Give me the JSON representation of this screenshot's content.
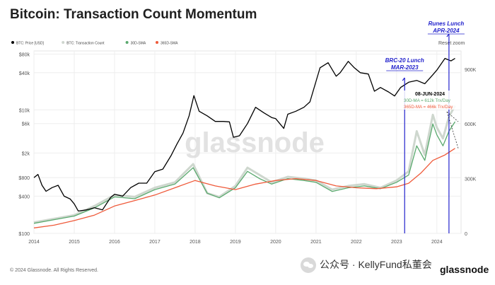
{
  "chart_data": {
    "type": "line",
    "title": "Bitcoin: Transaction Count Momentum",
    "legend_placement": "top-left",
    "grid": true,
    "y_left_scale": "log",
    "legend": [
      {
        "name": "BTC: Price [USD]",
        "color": "#000000"
      },
      {
        "name": "BTC: Transaction Count",
        "color": "#cfd6cf"
      },
      {
        "name": "30D-SMA",
        "color": "#5aa96e"
      },
      {
        "name": "365D-SMA",
        "color": "#ef5a3a"
      }
    ],
    "x_ticks": [
      "2014",
      "2015",
      "2016",
      "2017",
      "2018",
      "2019",
      "2020",
      "2021",
      "2022",
      "2023",
      "2024"
    ],
    "x_range": [
      2014.0,
      2024.6
    ],
    "y_left": {
      "ticks": [
        "$100",
        "$400",
        "$800",
        "$2k",
        "$6k",
        "$10k",
        "$40k",
        "$80k"
      ],
      "range": [
        100,
        90000
      ]
    },
    "y_right": {
      "ticks": [
        "0",
        "300K",
        "600K",
        "900K"
      ],
      "range": [
        0,
        1000000
      ]
    },
    "series": [
      {
        "name": "BTC: Price [USD]",
        "axis": "left",
        "x": [
          2014.0,
          2014.1,
          2014.2,
          2014.3,
          2014.45,
          2014.6,
          2014.75,
          2014.9,
          2015.0,
          2015.1,
          2015.3,
          2015.5,
          2015.7,
          2015.9,
          2016.0,
          2016.2,
          2016.4,
          2016.6,
          2016.8,
          2017.0,
          2017.2,
          2017.4,
          2017.55,
          2017.7,
          2017.85,
          2017.97,
          2018.1,
          2018.3,
          2018.5,
          2018.7,
          2018.85,
          2018.95,
          2019.1,
          2019.3,
          2019.5,
          2019.7,
          2019.9,
          2020.0,
          2020.2,
          2020.3,
          2020.5,
          2020.7,
          2020.85,
          2021.0,
          2021.1,
          2021.3,
          2021.5,
          2021.6,
          2021.8,
          2021.95,
          2022.1,
          2022.3,
          2022.45,
          2022.6,
          2022.8,
          2022.95,
          2023.1,
          2023.3,
          2023.5,
          2023.7,
          2023.9,
          2024.0,
          2024.2,
          2024.35,
          2024.45
        ],
        "y": [
          800,
          900,
          600,
          480,
          550,
          600,
          400,
          360,
          300,
          230,
          240,
          260,
          240,
          380,
          430,
          400,
          550,
          650,
          650,
          1000,
          1100,
          1800,
          2800,
          4200,
          8000,
          17000,
          9500,
          8000,
          6500,
          6500,
          6400,
          3600,
          3800,
          6000,
          11000,
          9000,
          7500,
          7200,
          5000,
          8500,
          9500,
          11000,
          13500,
          29000,
          48000,
          58000,
          35000,
          40000,
          61000,
          48000,
          40000,
          38000,
          20000,
          23000,
          19500,
          16800,
          23000,
          28000,
          30000,
          26500,
          37000,
          44000,
          68000,
          62000,
          68000
        ]
      },
      {
        "name": "BTC: Transaction Count",
        "axis": "right",
        "x": [
          2014.0,
          2014.5,
          2015.0,
          2015.5,
          2016.0,
          2016.5,
          2017.0,
          2017.5,
          2017.95,
          2018.3,
          2018.6,
          2019.0,
          2019.3,
          2019.6,
          2019.9,
          2020.3,
          2020.7,
          2021.0,
          2021.4,
          2021.8,
          2022.2,
          2022.6,
          2023.0,
          2023.3,
          2023.5,
          2023.7,
          2023.9,
          2024.0,
          2024.15,
          2024.3,
          2024.45
        ],
        "y": [
          60000,
          80000,
          100000,
          150000,
          210000,
          200000,
          250000,
          280000,
          380000,
          220000,
          200000,
          260000,
          360000,
          320000,
          280000,
          310000,
          300000,
          290000,
          240000,
          260000,
          270000,
          250000,
          290000,
          340000,
          560000,
          430000,
          650000,
          580000,
          520000,
          640000,
          700000
        ]
      },
      {
        "name": "30D-SMA",
        "axis": "right",
        "x": [
          2014.0,
          2014.5,
          2015.0,
          2015.5,
          2016.0,
          2016.5,
          2017.0,
          2017.5,
          2017.95,
          2018.3,
          2018.6,
          2019.0,
          2019.3,
          2019.6,
          2019.9,
          2020.3,
          2020.7,
          2021.0,
          2021.4,
          2021.8,
          2022.2,
          2022.6,
          2023.0,
          2023.3,
          2023.5,
          2023.7,
          2023.9,
          2024.0,
          2024.15,
          2024.3,
          2024.45
        ],
        "y": [
          55000,
          75000,
          95000,
          140000,
          200000,
          190000,
          240000,
          270000,
          360000,
          220000,
          195000,
          250000,
          340000,
          300000,
          270000,
          300000,
          290000,
          280000,
          230000,
          250000,
          260000,
          245000,
          280000,
          320000,
          480000,
          400000,
          600000,
          540000,
          480000,
          560000,
          612000
        ]
      },
      {
        "name": "365D-SMA",
        "axis": "right",
        "x": [
          2014.0,
          2014.5,
          2015.0,
          2015.5,
          2016.0,
          2016.5,
          2017.0,
          2017.5,
          2018.0,
          2018.5,
          2019.0,
          2019.5,
          2020.0,
          2020.5,
          2021.0,
          2021.5,
          2022.0,
          2022.5,
          2023.0,
          2023.3,
          2023.6,
          2023.9,
          2024.2,
          2024.45
        ],
        "y": [
          30000,
          45000,
          70000,
          100000,
          150000,
          180000,
          210000,
          250000,
          290000,
          260000,
          240000,
          270000,
          290000,
          300000,
          290000,
          260000,
          250000,
          245000,
          255000,
          275000,
          330000,
          400000,
          430000,
          466000
        ]
      }
    ],
    "annotations": [
      {
        "label": "BRC-20 Lunch",
        "sublabel": "MAR-2023",
        "x": 2023.2
      },
      {
        "label": "Runes Lunch",
        "sublabel": "APR-2024",
        "x": 2024.3
      },
      {
        "label": "08-JUN-2024",
        "lines": [
          "30D-MA = 612k Trx/Day",
          "365D-MA = 466k Trx/Day"
        ]
      }
    ]
  },
  "watermark_text": "glassnode",
  "reset_label": "Reset zoom",
  "footer": {
    "copyright": "© 2024 Glassnode. All Rights Reserved.",
    "brand": "glassnode",
    "wechat": "公众号 · KellyFund私董会"
  }
}
